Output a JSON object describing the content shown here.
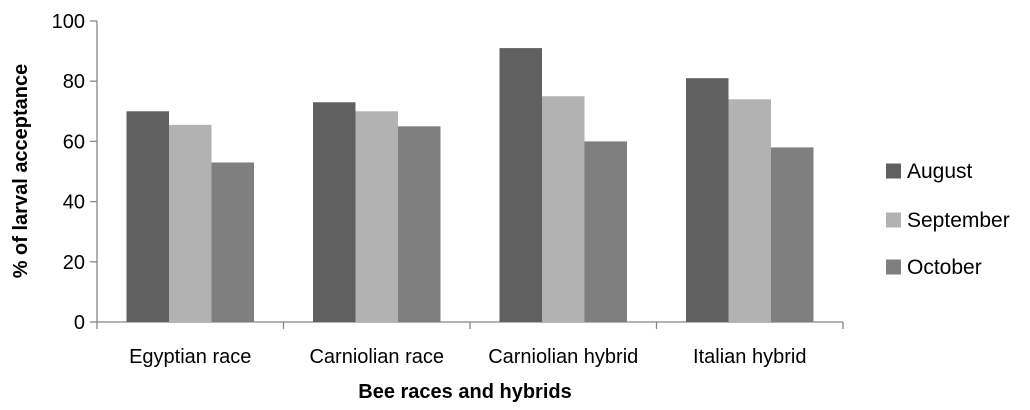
{
  "chart_data": {
    "type": "bar",
    "title": "",
    "xlabel": "Bee races and hybrids",
    "ylabel": "% of larval acceptance",
    "categories": [
      "Egyptian race",
      "Carniolian race",
      "Carniolian hybrid",
      "Italian hybrid"
    ],
    "series": [
      {
        "name": "August",
        "values": [
          70,
          73,
          91,
          81
        ],
        "color": "#606060"
      },
      {
        "name": "September",
        "values": [
          65.5,
          70,
          75,
          74
        ],
        "color": "#b2b2b2"
      },
      {
        "name": "October",
        "values": [
          53,
          65,
          60,
          58
        ],
        "color": "#7f7f7f"
      }
    ],
    "ylim": [
      0,
      100
    ],
    "yticks": [
      "0",
      "20",
      "40",
      "60",
      "80",
      "100"
    ],
    "grid": false,
    "legend_position": "right"
  }
}
